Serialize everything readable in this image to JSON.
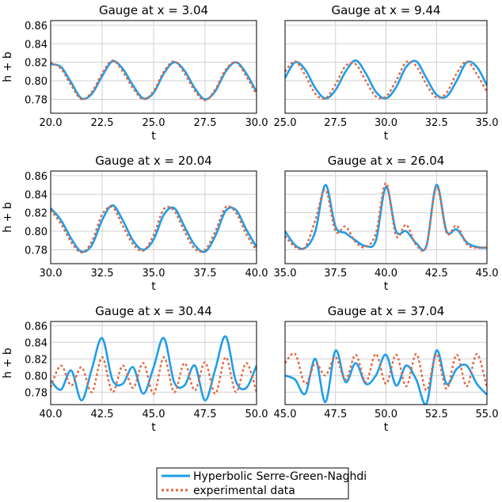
{
  "chart_data": [
    {
      "type": "line",
      "title": "Gauge at x = 3.04",
      "xlabel": "t",
      "ylabel": "h + b",
      "xlim": [
        20.0,
        30.0
      ],
      "ylim": [
        0.765,
        0.865
      ],
      "xticks": [
        "20.0",
        "22.5",
        "25.0",
        "27.5",
        "30.0"
      ],
      "yticks": [
        "0.78",
        "0.80",
        "0.82",
        "0.84",
        "0.86"
      ],
      "x": [
        20.0,
        20.5,
        21.0,
        21.5,
        22.0,
        22.5,
        23.0,
        23.5,
        24.0,
        24.5,
        25.0,
        25.5,
        26.0,
        26.5,
        27.0,
        27.5,
        28.0,
        28.5,
        29.0,
        29.5,
        30.0
      ],
      "series": [
        {
          "name": "Hyperbolic Serre-Green-Naghdi",
          "values": [
            0.818,
            0.815,
            0.798,
            0.781,
            0.786,
            0.805,
            0.821,
            0.813,
            0.795,
            0.781,
            0.787,
            0.808,
            0.82,
            0.811,
            0.792,
            0.78,
            0.789,
            0.81,
            0.82,
            0.808,
            0.788
          ]
        },
        {
          "name": "experimental data",
          "values": [
            0.82,
            0.813,
            0.795,
            0.78,
            0.788,
            0.808,
            0.822,
            0.81,
            0.792,
            0.78,
            0.789,
            0.81,
            0.821,
            0.808,
            0.789,
            0.779,
            0.791,
            0.812,
            0.82,
            0.805,
            0.785
          ]
        }
      ]
    },
    {
      "type": "line",
      "title": "Gauge at x = 9.44",
      "xlabel": "t",
      "ylabel": "",
      "xlim": [
        25.0,
        35.0
      ],
      "ylim": [
        0.765,
        0.865
      ],
      "xticks": [
        "25.0",
        "27.5",
        "30.0",
        "32.5",
        "35.0"
      ],
      "yticks": [],
      "x": [
        25.0,
        25.5,
        26.0,
        26.5,
        27.0,
        27.5,
        28.0,
        28.5,
        29.0,
        29.5,
        30.0,
        30.5,
        31.0,
        31.5,
        32.0,
        32.5,
        33.0,
        33.5,
        34.0,
        34.5,
        35.0
      ],
      "series": [
        {
          "name": "Hyperbolic Serre-Green-Naghdi",
          "values": [
            0.803,
            0.82,
            0.812,
            0.792,
            0.781,
            0.79,
            0.81,
            0.822,
            0.808,
            0.788,
            0.781,
            0.793,
            0.815,
            0.821,
            0.803,
            0.785,
            0.783,
            0.8,
            0.82,
            0.815,
            0.795
          ]
        },
        {
          "name": "experimental data",
          "values": [
            0.81,
            0.821,
            0.806,
            0.786,
            0.781,
            0.796,
            0.816,
            0.818,
            0.8,
            0.783,
            0.783,
            0.8,
            0.82,
            0.816,
            0.796,
            0.782,
            0.787,
            0.808,
            0.821,
            0.807,
            0.788
          ]
        }
      ]
    },
    {
      "type": "line",
      "title": "Gauge at x = 20.04",
      "xlabel": "t",
      "ylabel": "h + b",
      "xlim": [
        30.0,
        40.0
      ],
      "ylim": [
        0.765,
        0.865
      ],
      "xticks": [
        "30.0",
        "32.5",
        "35.0",
        "37.5",
        "40.0"
      ],
      "yticks": [
        "0.78",
        "0.80",
        "0.82",
        "0.84",
        "0.86"
      ],
      "x": [
        30.0,
        30.5,
        31.0,
        31.5,
        32.0,
        32.5,
        33.0,
        33.5,
        34.0,
        34.5,
        35.0,
        35.5,
        36.0,
        36.5,
        37.0,
        37.5,
        38.0,
        38.5,
        39.0,
        39.5,
        40.0
      ],
      "series": [
        {
          "name": "Hyperbolic Serre-Green-Naghdi",
          "values": [
            0.825,
            0.812,
            0.792,
            0.778,
            0.785,
            0.812,
            0.828,
            0.812,
            0.79,
            0.78,
            0.791,
            0.818,
            0.825,
            0.805,
            0.785,
            0.778,
            0.795,
            0.822,
            0.823,
            0.802,
            0.783
          ]
        },
        {
          "name": "experimental data",
          "values": [
            0.823,
            0.808,
            0.788,
            0.777,
            0.789,
            0.818,
            0.826,
            0.806,
            0.786,
            0.779,
            0.796,
            0.824,
            0.822,
            0.8,
            0.781,
            0.78,
            0.8,
            0.826,
            0.82,
            0.797,
            0.779
          ]
        }
      ]
    },
    {
      "type": "line",
      "title": "Gauge at x = 26.04",
      "xlabel": "t",
      "ylabel": "",
      "xlim": [
        35.0,
        45.0
      ],
      "ylim": [
        0.765,
        0.865
      ],
      "xticks": [
        "35.0",
        "37.5",
        "40.0",
        "42.5",
        "45.0"
      ],
      "yticks": [],
      "x": [
        35.0,
        35.5,
        36.0,
        36.5,
        37.0,
        37.5,
        38.0,
        38.5,
        39.0,
        39.5,
        40.0,
        40.5,
        41.0,
        41.5,
        42.0,
        42.5,
        43.0,
        43.5,
        44.0,
        44.5,
        45.0
      ],
      "series": [
        {
          "name": "Hyperbolic Serre-Green-Naghdi",
          "values": [
            0.8,
            0.785,
            0.782,
            0.8,
            0.85,
            0.805,
            0.798,
            0.79,
            0.784,
            0.79,
            0.848,
            0.8,
            0.8,
            0.787,
            0.784,
            0.85,
            0.8,
            0.802,
            0.788,
            0.783,
            0.782
          ]
        },
        {
          "name": "experimental data",
          "values": [
            0.795,
            0.783,
            0.783,
            0.812,
            0.845,
            0.8,
            0.805,
            0.788,
            0.783,
            0.798,
            0.852,
            0.795,
            0.807,
            0.785,
            0.784,
            0.848,
            0.798,
            0.806,
            0.786,
            0.782,
            0.783
          ]
        }
      ]
    },
    {
      "type": "line",
      "title": "Gauge at x = 30.44",
      "xlabel": "t",
      "ylabel": "h + b",
      "xlim": [
        40.0,
        50.0
      ],
      "ylim": [
        0.765,
        0.865
      ],
      "xticks": [
        "40.0",
        "42.5",
        "45.0",
        "47.5",
        "50.0"
      ],
      "yticks": [
        "0.78",
        "0.80",
        "0.82",
        "0.84",
        "0.86"
      ],
      "x": [
        40.0,
        40.5,
        41.0,
        41.5,
        42.0,
        42.5,
        43.0,
        43.5,
        44.0,
        44.5,
        45.0,
        45.5,
        46.0,
        46.5,
        47.0,
        47.5,
        48.0,
        48.5,
        49.0,
        49.5,
        50.0
      ],
      "series": [
        {
          "name": "Hyperbolic Serre-Green-Naghdi",
          "values": [
            0.794,
            0.783,
            0.806,
            0.77,
            0.808,
            0.845,
            0.795,
            0.79,
            0.81,
            0.778,
            0.81,
            0.845,
            0.792,
            0.788,
            0.812,
            0.77,
            0.808,
            0.847,
            0.793,
            0.785,
            0.812
          ]
        },
        {
          "name": "experimental data",
          "values": [
            0.786,
            0.812,
            0.788,
            0.81,
            0.78,
            0.822,
            0.78,
            0.812,
            0.785,
            0.815,
            0.778,
            0.822,
            0.78,
            0.815,
            0.782,
            0.816,
            0.778,
            0.822,
            0.78,
            0.815,
            0.78
          ]
        }
      ]
    },
    {
      "type": "line",
      "title": "Gauge at x = 37.04",
      "xlabel": "t",
      "ylabel": "",
      "xlim": [
        45.0,
        55.0
      ],
      "ylim": [
        0.765,
        0.865
      ],
      "xticks": [
        "45.0",
        "47.5",
        "50.0",
        "52.5",
        "55.0"
      ],
      "yticks": [],
      "x": [
        45.0,
        45.5,
        46.0,
        46.5,
        47.0,
        47.5,
        48.0,
        48.5,
        49.0,
        49.5,
        50.0,
        50.5,
        51.0,
        51.5,
        52.0,
        52.5,
        53.0,
        53.5,
        54.0,
        54.5,
        55.0
      ],
      "series": [
        {
          "name": "Hyperbolic Serre-Green-Naghdi",
          "values": [
            0.8,
            0.795,
            0.778,
            0.82,
            0.768,
            0.83,
            0.792,
            0.815,
            0.79,
            0.8,
            0.825,
            0.788,
            0.812,
            0.795,
            0.766,
            0.83,
            0.79,
            0.808,
            0.812,
            0.79,
            0.777
          ]
        },
        {
          "name": "experimental data",
          "values": [
            0.815,
            0.826,
            0.79,
            0.815,
            0.8,
            0.822,
            0.795,
            0.825,
            0.792,
            0.826,
            0.79,
            0.825,
            0.787,
            0.826,
            0.782,
            0.826,
            0.784,
            0.825,
            0.787,
            0.826,
            0.785
          ]
        }
      ]
    }
  ],
  "legend": {
    "items": [
      {
        "label": "Hyperbolic Serre-Green-Naghdi",
        "color": "#1f9ee8",
        "style": "solid"
      },
      {
        "label": "experimental data",
        "color": "#e5663f",
        "style": "dotted"
      }
    ]
  },
  "colors": {
    "model": "#1f9ee8",
    "experiment": "#e5663f"
  }
}
